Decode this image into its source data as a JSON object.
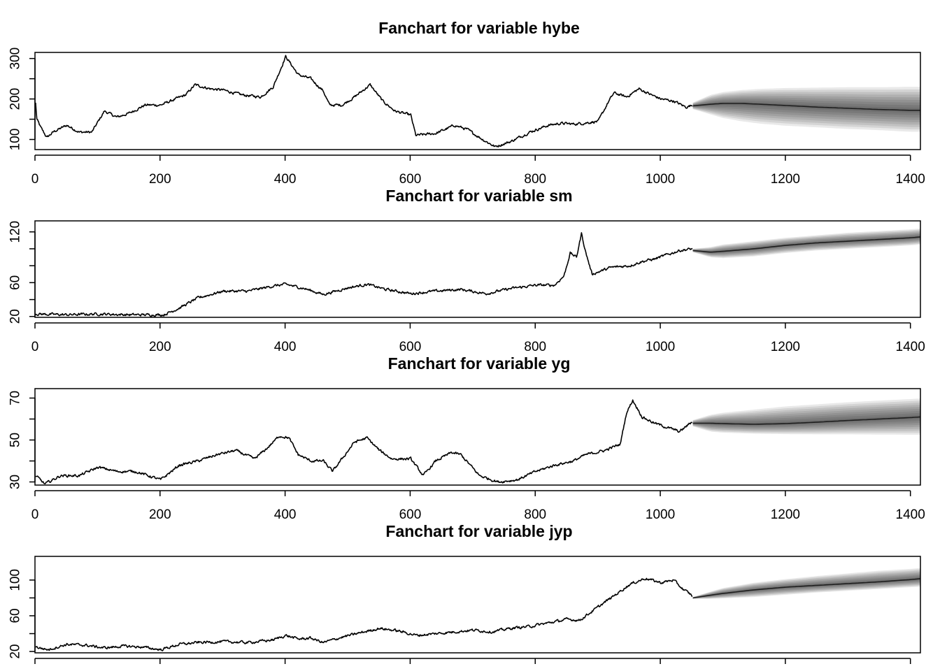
{
  "figure": {
    "background": "#ffffff",
    "line_color": "#000000",
    "fan_color": "#000000"
  },
  "chart_data": [
    {
      "type": "line",
      "title": "Fanchart for variable hybe",
      "xlim": [
        0,
        1416
      ],
      "ylim": [
        75,
        315
      ],
      "x_ticks": [
        0,
        200,
        400,
        600,
        800,
        1000,
        1200,
        1400
      ],
      "y_ticks": [
        100,
        200,
        300
      ],
      "show_x_tick_labels": true,
      "n_obs": 1051,
      "history_anchors": [
        [
          0,
          190
        ],
        [
          2,
          150
        ],
        [
          8,
          130
        ],
        [
          18,
          105
        ],
        [
          30,
          120
        ],
        [
          50,
          135
        ],
        [
          70,
          118
        ],
        [
          90,
          118
        ],
        [
          110,
          170
        ],
        [
          130,
          155
        ],
        [
          150,
          165
        ],
        [
          175,
          185
        ],
        [
          200,
          185
        ],
        [
          240,
          210
        ],
        [
          255,
          235
        ],
        [
          280,
          225
        ],
        [
          300,
          222
        ],
        [
          330,
          210
        ],
        [
          360,
          205
        ],
        [
          380,
          230
        ],
        [
          400,
          305
        ],
        [
          420,
          260
        ],
        [
          440,
          250
        ],
        [
          460,
          220
        ],
        [
          470,
          185
        ],
        [
          490,
          185
        ],
        [
          510,
          205
        ],
        [
          535,
          235
        ],
        [
          555,
          195
        ],
        [
          575,
          170
        ],
        [
          600,
          160
        ],
        [
          608,
          110
        ],
        [
          640,
          115
        ],
        [
          670,
          135
        ],
        [
          690,
          125
        ],
        [
          715,
          100
        ],
        [
          735,
          82
        ],
        [
          760,
          95
        ],
        [
          790,
          118
        ],
        [
          820,
          135
        ],
        [
          840,
          140
        ],
        [
          860,
          138
        ],
        [
          875,
          140
        ],
        [
          900,
          145
        ],
        [
          915,
          190
        ],
        [
          925,
          215
        ],
        [
          945,
          205
        ],
        [
          965,
          225
        ],
        [
          985,
          210
        ],
        [
          1000,
          200
        ],
        [
          1020,
          195
        ],
        [
          1040,
          180
        ],
        [
          1051,
          185
        ]
      ],
      "forecast": {
        "x": [
          1052,
          1080,
          1100,
          1130,
          1160,
          1200,
          1250,
          1300,
          1350,
          1400,
          1416
        ],
        "mean": [
          183,
          187,
          189,
          189,
          187,
          184,
          180,
          177,
          174,
          172,
          172
        ],
        "lower95": [
          175,
          162,
          153,
          145,
          139,
          134,
          130,
          126,
          123,
          119,
          119
        ],
        "upper95": [
          191,
          210,
          217,
          222,
          225,
          227,
          228,
          229,
          229,
          230,
          230
        ]
      }
    },
    {
      "type": "line",
      "title": "Fanchart for variable sm",
      "xlim": [
        0,
        1416
      ],
      "ylim": [
        19,
        133
      ],
      "x_ticks": [
        0,
        200,
        400,
        600,
        800,
        1000,
        1200,
        1400
      ],
      "y_ticks": [
        20,
        60,
        120
      ],
      "show_x_tick_labels": true,
      "n_obs": 1051,
      "history_anchors": [
        [
          0,
          23
        ],
        [
          50,
          22
        ],
        [
          100,
          23
        ],
        [
          150,
          22
        ],
        [
          205,
          22
        ],
        [
          230,
          30
        ],
        [
          260,
          42
        ],
        [
          300,
          50
        ],
        [
          340,
          50
        ],
        [
          380,
          56
        ],
        [
          400,
          58
        ],
        [
          430,
          53
        ],
        [
          460,
          46
        ],
        [
          500,
          54
        ],
        [
          530,
          58
        ],
        [
          560,
          52
        ],
        [
          600,
          47
        ],
        [
          640,
          50
        ],
        [
          680,
          52
        ],
        [
          720,
          47
        ],
        [
          760,
          53
        ],
        [
          800,
          57
        ],
        [
          830,
          57
        ],
        [
          845,
          68
        ],
        [
          855,
          95
        ],
        [
          865,
          90
        ],
        [
          873,
          118
        ],
        [
          880,
          95
        ],
        [
          890,
          70
        ],
        [
          920,
          78
        ],
        [
          950,
          80
        ],
        [
          970,
          85
        ],
        [
          990,
          88
        ],
        [
          1010,
          93
        ],
        [
          1030,
          98
        ],
        [
          1051,
          100
        ]
      ],
      "forecast": {
        "x": [
          1052,
          1080,
          1100,
          1150,
          1200,
          1250,
          1300,
          1350,
          1400,
          1416
        ],
        "mean": [
          98,
          96,
          97,
          100,
          104,
          107,
          109,
          111,
          113,
          114
        ],
        "lower95": [
          96,
          90,
          89,
          91,
          95,
          98,
          100,
          102,
          104,
          105
        ],
        "upper95": [
          100,
          102,
          105,
          109,
          113,
          116,
          119,
          121,
          123,
          124
        ]
      }
    },
    {
      "type": "line",
      "title": "Fanchart for variable yg",
      "xlim": [
        0,
        1416
      ],
      "ylim": [
        28.5,
        74.5
      ],
      "x_ticks": [
        0,
        200,
        400,
        600,
        800,
        1000,
        1200,
        1400
      ],
      "y_ticks": [
        30,
        50,
        70
      ],
      "show_x_tick_labels": true,
      "n_obs": 1051,
      "history_anchors": [
        [
          0,
          33
        ],
        [
          15,
          29
        ],
        [
          40,
          33
        ],
        [
          70,
          33
        ],
        [
          100,
          37
        ],
        [
          130,
          35
        ],
        [
          160,
          35
        ],
        [
          200,
          31
        ],
        [
          230,
          38
        ],
        [
          260,
          40
        ],
        [
          290,
          43
        ],
        [
          320,
          45
        ],
        [
          350,
          41
        ],
        [
          370,
          46
        ],
        [
          390,
          52
        ],
        [
          405,
          51
        ],
        [
          420,
          43
        ],
        [
          440,
          40
        ],
        [
          460,
          40
        ],
        [
          475,
          35
        ],
        [
          490,
          41
        ],
        [
          510,
          49
        ],
        [
          530,
          51
        ],
        [
          550,
          45
        ],
        [
          570,
          41
        ],
        [
          600,
          41
        ],
        [
          620,
          33
        ],
        [
          640,
          40
        ],
        [
          665,
          44
        ],
        [
          680,
          43
        ],
        [
          710,
          33
        ],
        [
          740,
          30
        ],
        [
          770,
          31
        ],
        [
          800,
          35
        ],
        [
          830,
          38
        ],
        [
          860,
          40
        ],
        [
          880,
          43
        ],
        [
          910,
          45
        ],
        [
          935,
          48
        ],
        [
          945,
          63
        ],
        [
          955,
          69
        ],
        [
          970,
          61
        ],
        [
          990,
          58
        ],
        [
          1010,
          56
        ],
        [
          1030,
          54
        ],
        [
          1051,
          59
        ]
      ],
      "forecast": {
        "x": [
          1052,
          1080,
          1100,
          1150,
          1200,
          1250,
          1300,
          1350,
          1400,
          1416
        ],
        "mean": [
          58,
          58,
          57.8,
          57.5,
          57.8,
          58.5,
          59.3,
          60,
          60.7,
          61
        ],
        "lower95": [
          56.5,
          54,
          53.5,
          53,
          52.8,
          52.7,
          52.7,
          52.6,
          52.5,
          52.5
        ],
        "upper95": [
          59.5,
          62,
          63,
          64.5,
          66,
          67,
          68,
          68.8,
          69.5,
          69.8
        ]
      }
    },
    {
      "type": "line",
      "title": "Fanchart for variable jyp",
      "xlim": [
        0,
        1416
      ],
      "ylim": [
        18.5,
        126.5
      ],
      "x_ticks": [
        0,
        200,
        400,
        600,
        800,
        1000,
        1200,
        1400
      ],
      "y_ticks": [
        20,
        60,
        100
      ],
      "show_x_tick_labels": false,
      "n_obs": 1051,
      "history_anchors": [
        [
          0,
          25
        ],
        [
          20,
          22
        ],
        [
          50,
          28
        ],
        [
          80,
          27
        ],
        [
          110,
          24
        ],
        [
          140,
          26
        ],
        [
          170,
          25
        ],
        [
          200,
          22
        ],
        [
          230,
          28
        ],
        [
          260,
          30
        ],
        [
          300,
          31
        ],
        [
          340,
          30
        ],
        [
          380,
          33
        ],
        [
          400,
          38
        ],
        [
          420,
          34
        ],
        [
          440,
          35
        ],
        [
          460,
          30
        ],
        [
          490,
          36
        ],
        [
          520,
          41
        ],
        [
          550,
          46
        ],
        [
          580,
          43
        ],
        [
          610,
          38
        ],
        [
          640,
          40
        ],
        [
          670,
          42
        ],
        [
          700,
          44
        ],
        [
          730,
          42
        ],
        [
          760,
          46
        ],
        [
          790,
          48
        ],
        [
          820,
          52
        ],
        [
          850,
          56
        ],
        [
          870,
          55
        ],
        [
          890,
          65
        ],
        [
          910,
          75
        ],
        [
          930,
          85
        ],
        [
          950,
          95
        ],
        [
          975,
          102
        ],
        [
          1000,
          97
        ],
        [
          1020,
          100
        ],
        [
          1035,
          90
        ],
        [
          1051,
          82
        ]
      ],
      "forecast": {
        "x": [
          1052,
          1080,
          1100,
          1150,
          1200,
          1250,
          1300,
          1350,
          1400,
          1416
        ],
        "mean": [
          80,
          83,
          85,
          89,
          92,
          94,
          96,
          98,
          100.5,
          101.5
        ],
        "lower95": [
          79,
          79,
          79.5,
          81,
          83.5,
          86,
          88,
          90,
          92,
          92.5
        ],
        "upper95": [
          81,
          87,
          91,
          97,
          101,
          104.5,
          107.5,
          110.5,
          112.5,
          113.5
        ]
      }
    }
  ]
}
